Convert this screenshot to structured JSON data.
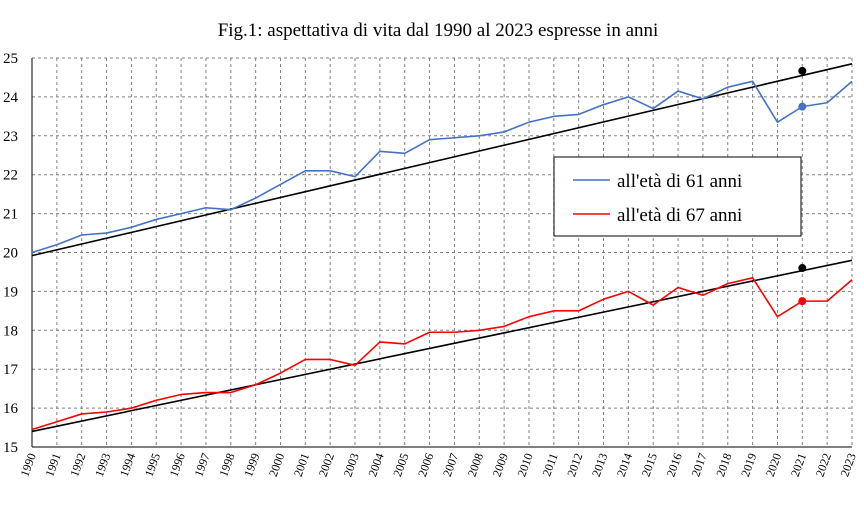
{
  "chart_data": {
    "type": "line",
    "title": "Fig.1: aspettativa di vita dal 1990 al 2023 espresse in anni",
    "xlabel": "",
    "ylabel": "",
    "x": [
      1990,
      1991,
      1992,
      1993,
      1994,
      1995,
      1996,
      1997,
      1998,
      1999,
      2000,
      2001,
      2002,
      2003,
      2004,
      2005,
      2006,
      2007,
      2008,
      2009,
      2010,
      2011,
      2012,
      2013,
      2014,
      2015,
      2016,
      2017,
      2018,
      2019,
      2020,
      2021,
      2022,
      2023
    ],
    "xlim": [
      1990,
      2023
    ],
    "ylim": [
      15,
      25
    ],
    "yticks": [
      15,
      16,
      17,
      18,
      19,
      20,
      21,
      22,
      23,
      24,
      25
    ],
    "grid": true,
    "legend_position": "center-right",
    "series": [
      {
        "name": "all'età di 61 anni",
        "color": "#4472C4",
        "values": [
          20.0,
          20.2,
          20.45,
          20.5,
          20.65,
          20.85,
          21.0,
          21.15,
          21.1,
          21.4,
          21.75,
          22.1,
          22.1,
          21.95,
          22.6,
          22.55,
          22.9,
          22.95,
          23.0,
          23.1,
          23.35,
          23.5,
          23.55,
          23.8,
          24.0,
          23.7,
          24.15,
          23.95,
          24.25,
          24.4,
          23.35,
          23.75,
          23.85,
          24.4
        ],
        "highlight": {
          "x": 2021,
          "y": 23.75
        }
      },
      {
        "name": "all'età di 67 anni",
        "color": "#FF0000",
        "values": [
          15.45,
          15.65,
          15.85,
          15.9,
          16.0,
          16.2,
          16.35,
          16.4,
          16.4,
          16.6,
          16.9,
          17.25,
          17.25,
          17.1,
          17.7,
          17.65,
          17.95,
          17.95,
          18.0,
          18.1,
          18.35,
          18.5,
          18.5,
          18.8,
          19.0,
          18.65,
          19.1,
          18.9,
          19.2,
          19.35,
          18.35,
          18.75,
          18.75,
          19.3
        ],
        "highlight": {
          "x": 2021,
          "y": 18.75
        }
      }
    ],
    "trendlines": [
      {
        "color": "#000000",
        "from": {
          "x": 1990,
          "y": 19.92
        },
        "to": {
          "x": 2023,
          "y": 24.85
        },
        "marker": {
          "x": 2021,
          "y": 24.67
        }
      },
      {
        "color": "#000000",
        "from": {
          "x": 1990,
          "y": 15.4
        },
        "to": {
          "x": 2023,
          "y": 19.8
        },
        "marker": {
          "x": 2021,
          "y": 19.6
        }
      }
    ]
  }
}
